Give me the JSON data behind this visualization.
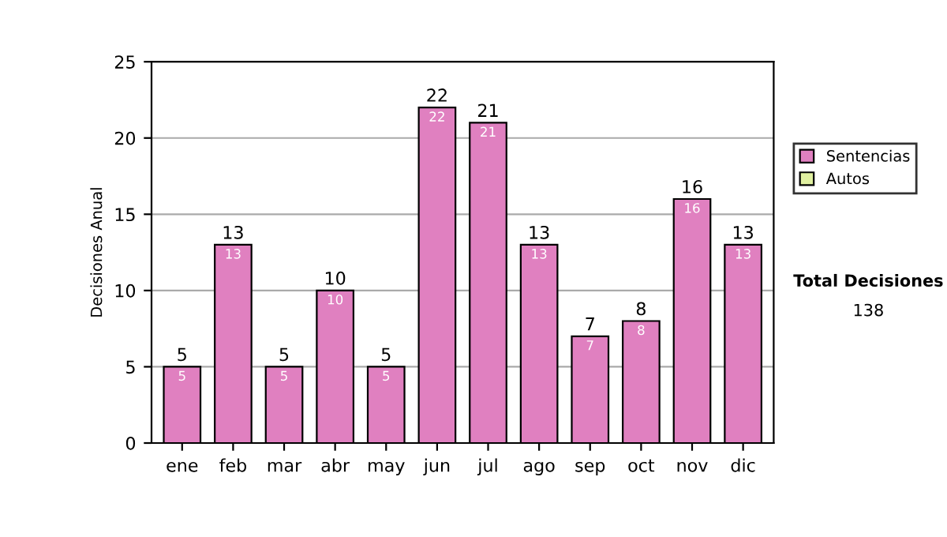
{
  "chart_data": {
    "type": "bar",
    "ylabel": "Decisiones Anual",
    "categories": [
      "ene",
      "feb",
      "mar",
      "abr",
      "may",
      "jun",
      "jul",
      "ago",
      "sep",
      "oct",
      "nov",
      "dic"
    ],
    "series": [
      {
        "name": "Sentencias",
        "color": "#e080c0",
        "values": [
          5,
          13,
          5,
          10,
          5,
          22,
          21,
          13,
          7,
          8,
          16,
          13
        ],
        "value_labels": [
          "5",
          "13",
          "5",
          "10",
          "5",
          "22",
          "21",
          "13",
          "7",
          "8",
          "16",
          "13"
        ]
      },
      {
        "name": "Autos",
        "color": "#e0f0a0",
        "values": [
          null,
          null,
          null,
          null,
          null,
          null,
          null,
          null,
          null,
          null,
          null,
          null
        ]
      }
    ],
    "stacked": true,
    "totals": [
      "5",
      "13",
      "5",
      "10",
      "5",
      "22",
      "21",
      "13",
      "7",
      "8",
      "16",
      "13"
    ],
    "ylim": [
      0,
      25
    ],
    "yticks": [
      0,
      5,
      10,
      15,
      20,
      25
    ],
    "grid": "y",
    "legend": "right",
    "annotations": [
      "Total Decisiones",
      "138"
    ]
  }
}
